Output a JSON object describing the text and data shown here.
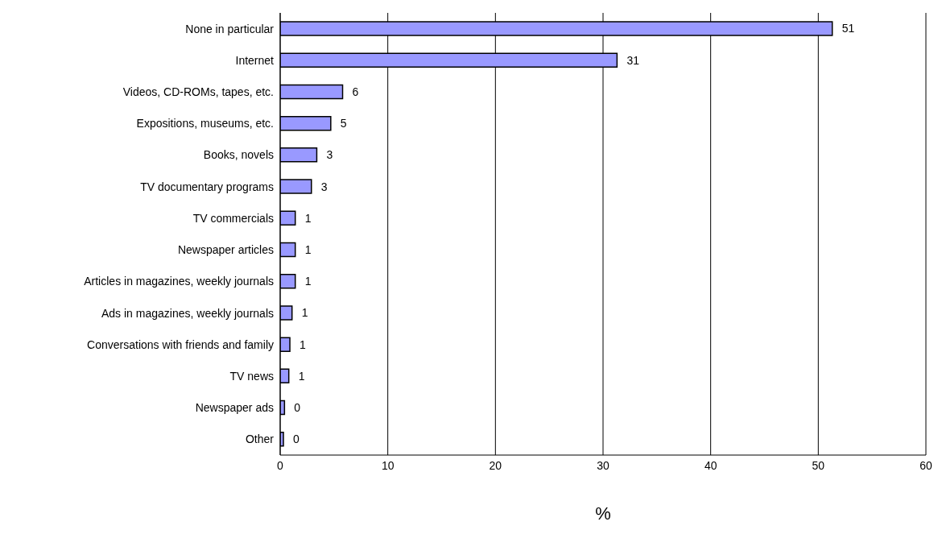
{
  "chart_data": {
    "type": "bar",
    "orientation": "horizontal",
    "xlabel": "%",
    "categories": [
      "None in particular",
      "Internet",
      "Videos, CD-ROMs, tapes, etc.",
      "Expositions, museums, etc.",
      "Books, novels",
      "TV documentary programs",
      "TV commercials",
      "Newspaper articles",
      "Articles in magazines, weekly journals",
      "Ads in magazines, weekly journals",
      "Conversations with friends and family",
      "TV news",
      "Newspaper ads",
      "Other"
    ],
    "values": [
      51.3,
      31.3,
      5.8,
      4.7,
      3.4,
      2.9,
      1.4,
      1.4,
      1.4,
      1.1,
      0.9,
      0.8,
      0.4,
      0.3
    ],
    "value_labels": [
      "51",
      "31",
      "6",
      "5",
      "3",
      "3",
      "1",
      "1",
      "1",
      "1",
      "1",
      "1",
      "0",
      "0"
    ],
    "color": "#9999ff",
    "xlim": [
      0,
      60
    ],
    "xticks": [
      0,
      10,
      20,
      30,
      40,
      50,
      60
    ],
    "grid": "x",
    "legend": false
  }
}
